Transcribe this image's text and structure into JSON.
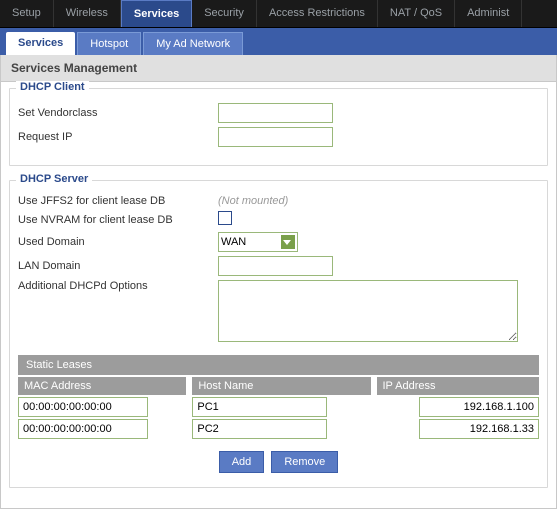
{
  "topnav": {
    "tabs": [
      "Setup",
      "Wireless",
      "Services",
      "Security",
      "Access Restrictions",
      "NAT / QoS",
      "Administ"
    ],
    "active": 2
  },
  "subnav": {
    "tabs": [
      "Services",
      "Hotspot",
      "My Ad Network"
    ],
    "active": 0
  },
  "page_title": "Services Management",
  "dhcp_client": {
    "title": "DHCP Client",
    "vendorclass_label": "Set Vendorclass",
    "vendorclass_value": "",
    "request_ip_label": "Request IP",
    "request_ip_value": ""
  },
  "dhcp_server": {
    "title": "DHCP Server",
    "jffs2_label": "Use JFFS2 for client lease DB",
    "jffs2_status": "(Not mounted)",
    "nvram_label": "Use NVRAM for client lease DB",
    "nvram_checked": false,
    "used_domain_label": "Used Domain",
    "used_domain_value": "WAN",
    "lan_domain_label": "LAN Domain",
    "lan_domain_value": "",
    "addl_opts_label": "Additional DHCPd Options",
    "addl_opts_value": ""
  },
  "static_leases": {
    "title": "Static Leases",
    "cols": {
      "mac": "MAC Address",
      "host": "Host Name",
      "ip": "IP Address"
    },
    "rows": [
      {
        "mac": "00:00:00:00:00:00",
        "host": "PC1",
        "ip": "192.168.1.100"
      },
      {
        "mac": "00:00:00:00:00:00",
        "host": "PC2",
        "ip": "192.168.1.33"
      }
    ],
    "add_btn": "Add",
    "remove_btn": "Remove"
  },
  "colors": {
    "primary": "#3b5da8",
    "primary_light": "#5a7bc4",
    "top_bg": "#1a1a1a",
    "field_border": "#9ab87a",
    "header_gray": "#9c9c9c"
  }
}
